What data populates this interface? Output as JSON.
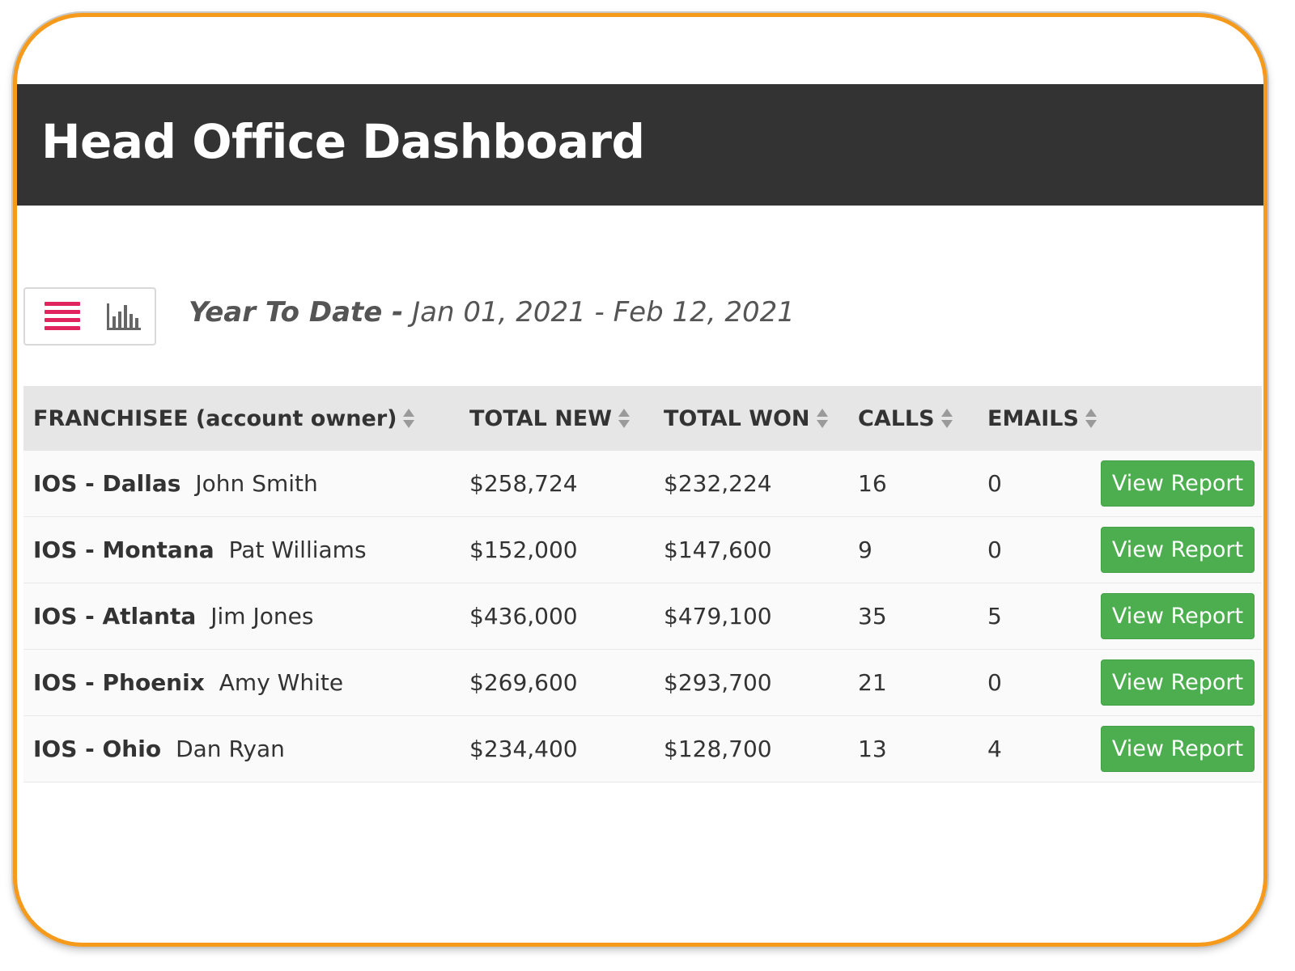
{
  "header": {
    "title": "Head Office Dashboard"
  },
  "toolbar": {
    "list_icon": "list-icon",
    "chart_icon": "bar-chart-icon",
    "accent_color": "#e0245e"
  },
  "period": {
    "label": "Year To Date -",
    "range": "Jan 01, 2021 - Feb 12, 2021"
  },
  "table": {
    "columns": {
      "franchisee": "FRANCHISEE (account owner)",
      "total_new": "TOTAL NEW",
      "total_won": "TOTAL WON",
      "calls": "CALLS",
      "emails": "EMAILS"
    },
    "rows": [
      {
        "location": "IOS - Dallas",
        "owner": "John Smith",
        "total_new": "$258,724",
        "total_won": "$232,224",
        "calls": "16",
        "emails": "0",
        "action": "View Report"
      },
      {
        "location": "IOS - Montana",
        "owner": "Pat Williams",
        "total_new": "$152,000",
        "total_won": "$147,600",
        "calls": "9",
        "emails": "0",
        "action": "View Report"
      },
      {
        "location": "IOS - Atlanta",
        "owner": "Jim Jones",
        "total_new": "$436,000",
        "total_won": "$479,100",
        "calls": "35",
        "emails": "5",
        "action": "View Report"
      },
      {
        "location": "IOS - Phoenix",
        "owner": "Amy White",
        "total_new": "$269,600",
        "total_won": "$293,700",
        "calls": "21",
        "emails": "0",
        "action": "View Report"
      },
      {
        "location": "IOS - Ohio",
        "owner": "Dan Ryan",
        "total_new": "$234,400",
        "total_won": "$128,700",
        "calls": "13",
        "emails": "4",
        "action": "View Report"
      }
    ]
  },
  "colors": {
    "frame_border": "#f59a1b",
    "header_bg": "#333333",
    "button_green": "#4cae4f"
  }
}
